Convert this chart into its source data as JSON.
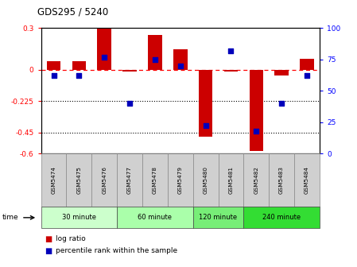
{
  "title": "GDS295 / 5240",
  "samples": [
    "GSM5474",
    "GSM5475",
    "GSM5476",
    "GSM5477",
    "GSM5478",
    "GSM5479",
    "GSM5480",
    "GSM5481",
    "GSM5482",
    "GSM5483",
    "GSM5484"
  ],
  "log_ratio": [
    0.06,
    0.06,
    0.3,
    -0.01,
    0.25,
    0.15,
    -0.48,
    -0.01,
    -0.58,
    -0.04,
    0.08
  ],
  "percentile": [
    62,
    62,
    77,
    40,
    75,
    70,
    22,
    82,
    18,
    40,
    62
  ],
  "ylim_left": [
    -0.6,
    0.3
  ],
  "ylim_right": [
    0,
    100
  ],
  "yticks_left": [
    -0.6,
    -0.45,
    -0.225,
    0.0,
    0.3
  ],
  "yticks_right": [
    0,
    25,
    50,
    75,
    100
  ],
  "ytick_labels_left": [
    "-0.6",
    "-0.45",
    "-0.225",
    "0",
    "0.3"
  ],
  "ytick_labels_right": [
    "0",
    "25",
    "50",
    "75",
    "100 "
  ],
  "hline_value": 0.0,
  "dotted_lines": [
    -0.225,
    -0.45
  ],
  "bar_color": "#cc0000",
  "point_color": "#0000bb",
  "bar_width": 0.55,
  "groups": [
    {
      "label": "30 minute",
      "start": 0,
      "end": 2,
      "color": "#ccffcc"
    },
    {
      "label": "60 minute",
      "start": 3,
      "end": 5,
      "color": "#aaffaa"
    },
    {
      "label": "120 minute",
      "start": 6,
      "end": 7,
      "color": "#77ee77"
    },
    {
      "label": "240 minute",
      "start": 8,
      "end": 10,
      "color": "#33dd33"
    }
  ],
  "legend_bar_label": "log ratio",
  "legend_point_label": "percentile rank within the sample",
  "time_label": "time",
  "sample_bg": "#d0d0d0",
  "plot_bg": "#ffffff"
}
